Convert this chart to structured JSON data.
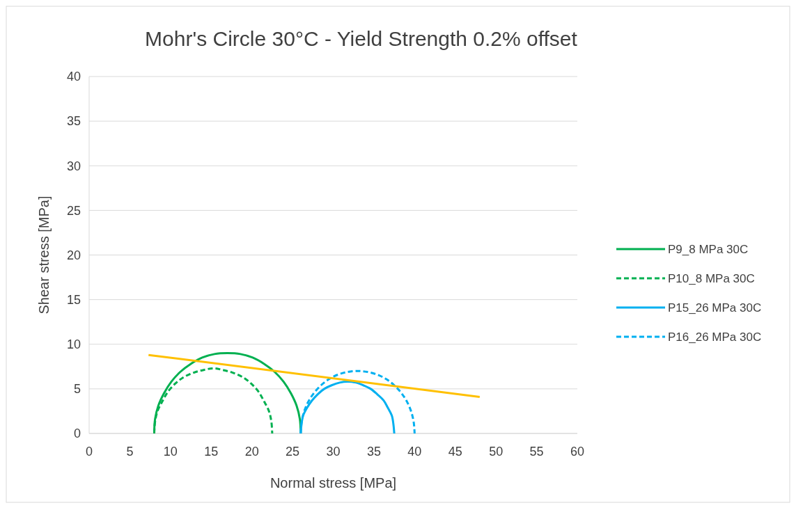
{
  "chart_data": {
    "type": "line",
    "title": "Mohr's Circle 30°C - Yield Strength 0.2% offset",
    "xlabel": "Normal stress [MPa]",
    "ylabel": "Shear stress [MPa]",
    "xlim": [
      0,
      60
    ],
    "xticks": [
      0,
      5,
      10,
      15,
      20,
      25,
      30,
      35,
      40,
      45,
      50,
      55,
      60
    ],
    "ylim": [
      0,
      40
    ],
    "yticks": [
      0,
      5,
      10,
      15,
      20,
      25,
      30,
      35,
      40
    ],
    "grid": "y",
    "legend": "right",
    "marker": "none",
    "series": [
      {
        "name": "P9_8 MPa 30C",
        "color": "#00b050",
        "line_style": "solid",
        "x": [
          8,
          8.1,
          8.5,
          9.2,
          10.1,
          11.2,
          12.5,
          13.9,
          15.4,
          17,
          18.6,
          20.1,
          21.5,
          22.8,
          23.9,
          24.8,
          25.5,
          25.9,
          26
        ],
        "values": [
          0,
          1.6,
          3.1,
          4.5,
          5.8,
          6.9,
          7.8,
          8.5,
          8.9,
          9,
          8.9,
          8.5,
          7.8,
          6.9,
          5.8,
          4.5,
          3.1,
          1.6,
          0
        ]
      },
      {
        "name": "P10_8 MPa 30C",
        "color": "#00b050",
        "line_style": "dashed",
        "x": [
          8,
          8.1,
          8.4,
          9,
          9.7,
          10.6,
          11.6,
          12.8,
          14,
          15.3,
          16.5,
          17.7,
          18.9,
          19.9,
          20.8,
          21.5,
          22.1,
          22.4,
          22.5
        ],
        "values": [
          0,
          1.3,
          2.5,
          3.6,
          4.7,
          5.6,
          6.3,
          6.8,
          7.1,
          7.3,
          7.1,
          6.8,
          6.3,
          5.6,
          4.7,
          3.6,
          2.5,
          1.3,
          0
        ]
      },
      {
        "name": "P15_26 MPa 30C",
        "color": "#00b0f0",
        "line_style": "solid",
        "x": [
          26,
          26.1,
          26.3,
          26.8,
          27.4,
          28.1,
          28.9,
          29.8,
          30.8,
          31.8,
          32.8,
          33.7,
          34.6,
          35.4,
          36.2,
          36.7,
          37.2,
          37.4,
          37.5
        ],
        "values": [
          0,
          1,
          2,
          2.9,
          3.7,
          4.4,
          5,
          5.4,
          5.7,
          5.8,
          5.7,
          5.4,
          5,
          4.4,
          3.7,
          2.9,
          2,
          1,
          0
        ]
      },
      {
        "name": "P16_26 MPa 30C",
        "color": "#00b0f0",
        "line_style": "dashed",
        "x": [
          26,
          26.1,
          26.4,
          26.9,
          27.6,
          28.5,
          29.5,
          30.6,
          31.8,
          33,
          34.2,
          35.4,
          36.5,
          37.5,
          38.4,
          39.1,
          39.6,
          39.9,
          40
        ],
        "values": [
          0,
          1.2,
          2.4,
          3.5,
          4.5,
          5.4,
          6.1,
          6.6,
          6.9,
          7,
          6.9,
          6.6,
          6.1,
          5.4,
          4.5,
          3.5,
          2.4,
          1.2,
          0
        ]
      },
      {
        "color": "#ffc000",
        "line_style": "solid",
        "x": [
          7.3,
          48
        ],
        "values": [
          8.8,
          4.1
        ]
      }
    ]
  }
}
